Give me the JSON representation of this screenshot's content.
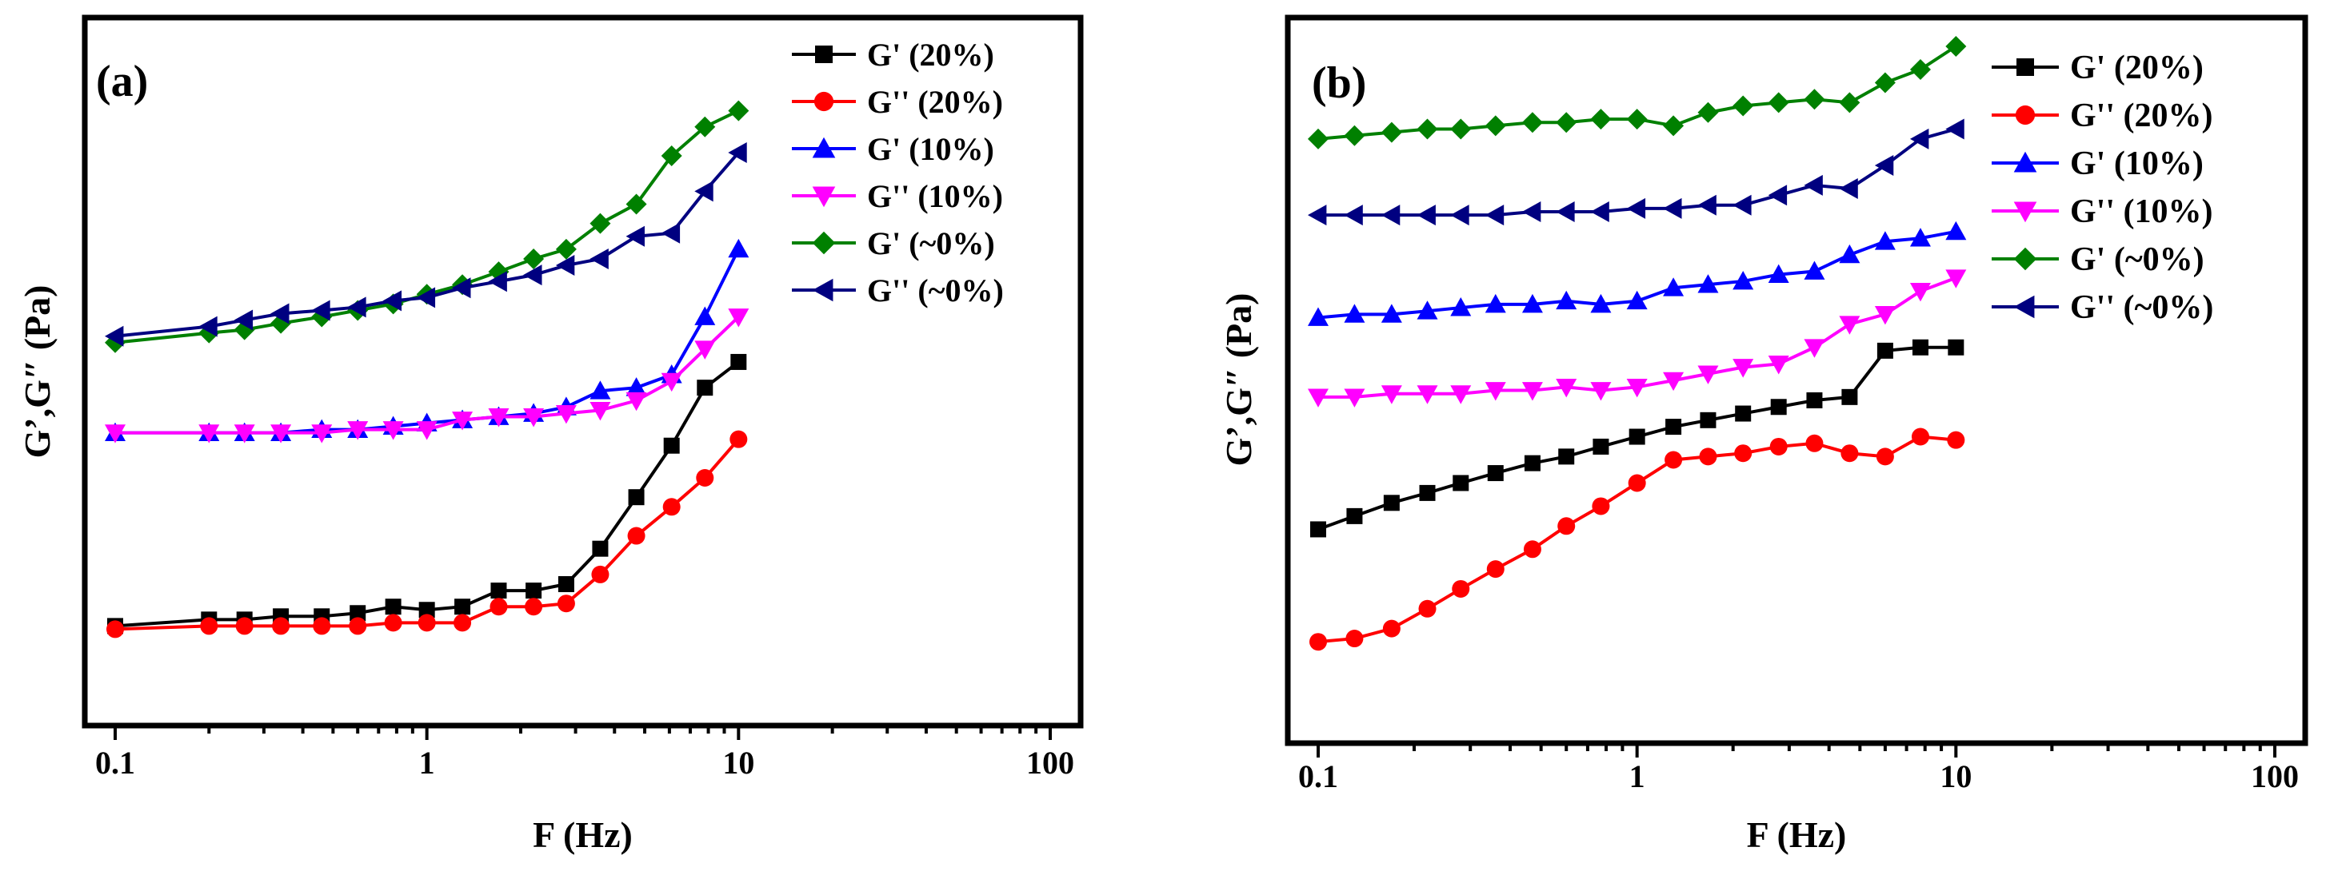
{
  "chart_data": [
    {
      "type": "line",
      "panel_label": "(a)",
      "xlabel": "F (Hz)",
      "ylabel": "G’,G″ (Pa)",
      "xscale": "log",
      "xlim": [
        0.1,
        100
      ],
      "ylim": [
        0,
        100
      ],
      "x_ticks": [
        0.1,
        1,
        10,
        100
      ],
      "x_tick_labels": [
        "0.1",
        "1",
        "10",
        "100"
      ],
      "y_tick_labels_shown": false,
      "legend_position": "top-right",
      "series": [
        {
          "name": "G'  (20%)",
          "color": "#000000",
          "marker": "square",
          "x": [
            0.1,
            0.2,
            0.26,
            0.34,
            0.46,
            0.6,
            0.78,
            1.0,
            1.3,
            1.7,
            2.2,
            2.8,
            3.6,
            4.7,
            6.1,
            7.8,
            10
          ],
          "y": [
            10,
            11,
            11,
            11.5,
            11.5,
            12,
            13,
            12.5,
            13,
            15.5,
            15.5,
            16.5,
            22,
            30,
            38,
            47,
            51
          ]
        },
        {
          "name": "G''  (20%)",
          "color": "#ff0000",
          "marker": "circle",
          "x": [
            0.1,
            0.2,
            0.26,
            0.34,
            0.46,
            0.6,
            0.78,
            1.0,
            1.3,
            1.7,
            2.2,
            2.8,
            3.6,
            4.7,
            6.1,
            7.8,
            10
          ],
          "y": [
            9.5,
            10,
            10,
            10,
            10,
            10,
            10.5,
            10.5,
            10.5,
            13,
            13,
            13.5,
            18,
            24,
            28.5,
            33,
            39
          ]
        },
        {
          "name": "G'  (10%)",
          "color": "#0000ff",
          "marker": "triangle-up",
          "x": [
            0.1,
            0.2,
            0.26,
            0.34,
            0.46,
            0.6,
            0.78,
            1.0,
            1.3,
            1.7,
            2.2,
            2.8,
            3.6,
            4.7,
            6.1,
            7.8,
            10
          ],
          "y": [
            40,
            40,
            40,
            40,
            40.5,
            40.5,
            41,
            41.5,
            42,
            42.5,
            43,
            44,
            46.5,
            47,
            49,
            58,
            68.5
          ]
        },
        {
          "name": "G''  (10%)",
          "color": "#ff00ff",
          "marker": "triangle-down",
          "x": [
            0.1,
            0.2,
            0.26,
            0.34,
            0.46,
            0.6,
            0.78,
            1.0,
            1.3,
            1.7,
            2.2,
            2.8,
            3.6,
            4.7,
            6.1,
            7.8,
            10
          ],
          "y": [
            40,
            40,
            40,
            40,
            40,
            40.5,
            40.5,
            40.5,
            42,
            42.5,
            42.5,
            43,
            43.5,
            45,
            48,
            53,
            58
          ]
        },
        {
          "name": "G' (~0%)",
          "color": "#008000",
          "marker": "diamond",
          "x": [
            0.1,
            0.2,
            0.26,
            0.34,
            0.46,
            0.6,
            0.78,
            1.0,
            1.3,
            1.7,
            2.2,
            2.8,
            3.6,
            4.7,
            6.1,
            7.8,
            10
          ],
          "y": [
            54,
            55.5,
            56,
            57,
            58,
            59,
            60,
            61.5,
            63,
            65,
            67,
            68.5,
            72.5,
            75.5,
            83,
            87.5,
            90
          ]
        },
        {
          "name": "G'' (~0%)",
          "color": "#000080",
          "marker": "triangle-left",
          "x": [
            0.1,
            0.2,
            0.26,
            0.34,
            0.46,
            0.6,
            0.78,
            1.0,
            1.3,
            1.7,
            2.2,
            2.8,
            3.6,
            4.7,
            6.1,
            7.8,
            10
          ],
          "y": [
            55,
            56.5,
            57.5,
            58.5,
            59,
            59.5,
            60.5,
            61,
            62.5,
            63.5,
            64.5,
            66,
            67,
            70.5,
            71,
            77.5,
            83.5
          ]
        }
      ]
    },
    {
      "type": "line",
      "panel_label": "(b)",
      "xlabel": "F (Hz)",
      "ylabel": "G’,G″ (Pa)",
      "xscale": "log",
      "xlim": [
        0.1,
        100
      ],
      "ylim": [
        0,
        100
      ],
      "x_ticks": [
        0.1,
        1,
        10,
        100
      ],
      "x_tick_labels": [
        "0.1",
        "1",
        "10",
        "100"
      ],
      "y_tick_labels_shown": false,
      "legend_position": "top-right",
      "series": [
        {
          "name": "G'   (20%)",
          "color": "#000000",
          "marker": "square",
          "x": [
            0.1,
            0.13,
            0.17,
            0.22,
            0.28,
            0.36,
            0.47,
            0.6,
            0.77,
            1.0,
            1.3,
            1.67,
            2.15,
            2.78,
            3.6,
            4.64,
            6.0,
            7.74,
            10
          ],
          "y": [
            27,
            29,
            31,
            32.5,
            34,
            35.5,
            37,
            38,
            39.5,
            41,
            42.5,
            43.5,
            44.5,
            45.5,
            46.5,
            47,
            54,
            54.5,
            54.5
          ]
        },
        {
          "name": "G''  (20%)",
          "color": "#ff0000",
          "marker": "circle",
          "x": [
            0.1,
            0.13,
            0.17,
            0.22,
            0.28,
            0.36,
            0.47,
            0.6,
            0.77,
            1.0,
            1.3,
            1.67,
            2.15,
            2.78,
            3.6,
            4.64,
            6.0,
            7.74,
            10
          ],
          "y": [
            10,
            10.5,
            12,
            15,
            18,
            21,
            24,
            27.5,
            30.5,
            34,
            37.5,
            38,
            38.5,
            39.5,
            40,
            38.5,
            38,
            41,
            40.5
          ]
        },
        {
          "name": "G''  (10%)",
          "color": "#ff00ff",
          "marker": "triangle-down",
          "x": [
            0.1,
            0.13,
            0.17,
            0.22,
            0.28,
            0.36,
            0.47,
            0.6,
            0.77,
            1.0,
            1.3,
            1.67,
            2.15,
            2.78,
            3.6,
            4.64,
            6.0,
            7.74,
            10
          ],
          "y": [
            47,
            47,
            47.5,
            47.5,
            47.5,
            48,
            48,
            48.5,
            48,
            48.5,
            49.5,
            50.5,
            51.5,
            52,
            54.5,
            58,
            59.5,
            63,
            65
          ]
        },
        {
          "name": "G'   (10%)",
          "color": "#0000ff",
          "marker": "triangle-up",
          "x": [
            0.1,
            0.13,
            0.17,
            0.22,
            0.28,
            0.36,
            0.47,
            0.6,
            0.77,
            1.0,
            1.3,
            1.67,
            2.15,
            2.78,
            3.6,
            4.64,
            6.0,
            7.74,
            10
          ],
          "y": [
            59,
            59.5,
            59.5,
            60,
            60.5,
            61,
            61,
            61.5,
            61,
            61.5,
            63.5,
            64,
            64.5,
            65.5,
            66,
            68.5,
            70.5,
            71,
            72
          ]
        },
        {
          "name": "G'   (~0%)",
          "color": "#008000",
          "marker": "diamond",
          "x": [
            0.1,
            0.13,
            0.17,
            0.22,
            0.28,
            0.36,
            0.47,
            0.6,
            0.77,
            1.0,
            1.3,
            1.67,
            2.15,
            2.78,
            3.6,
            4.64,
            6.0,
            7.74,
            10
          ],
          "y": [
            86,
            86.5,
            87,
            87.5,
            87.5,
            88,
            88.5,
            88.5,
            89,
            89,
            88,
            90,
            91,
            91.5,
            92,
            91.5,
            94.5,
            96.5,
            100
          ]
        },
        {
          "name": "G''  (~0%)",
          "color": "#000080",
          "marker": "triangle-left",
          "x": [
            0.1,
            0.13,
            0.17,
            0.22,
            0.28,
            0.36,
            0.47,
            0.6,
            0.77,
            1.0,
            1.3,
            1.67,
            2.15,
            2.78,
            3.6,
            4.64,
            6.0,
            7.74,
            10
          ],
          "y": [
            74.5,
            74.5,
            74.5,
            74.5,
            74.5,
            74.5,
            75,
            75,
            75,
            75.5,
            75.5,
            76,
            76,
            77.5,
            79,
            78.5,
            82,
            86,
            87.5
          ]
        }
      ]
    }
  ]
}
